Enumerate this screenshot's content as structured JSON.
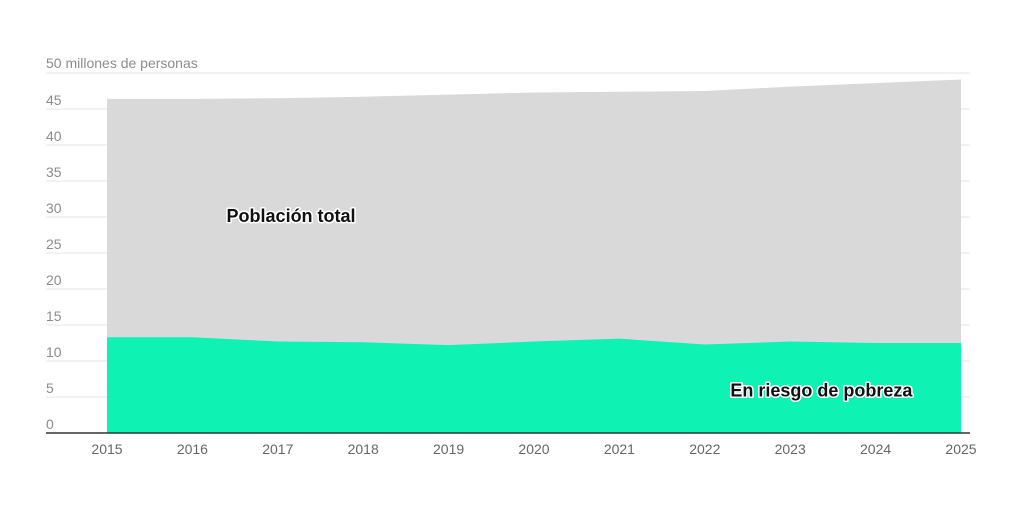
{
  "chart_data": {
    "type": "area",
    "x": [
      2015,
      2016,
      2017,
      2018,
      2019,
      2020,
      2021,
      2022,
      2023,
      2024,
      2025
    ],
    "series": [
      {
        "name": "Población total",
        "values": [
          46.4,
          46.4,
          46.5,
          46.7,
          47.0,
          47.3,
          47.4,
          47.5,
          48.1,
          48.6,
          49.1
        ],
        "color": "#d9d9d9"
      },
      {
        "name": "En riesgo de pobreza",
        "values": [
          13.3,
          13.3,
          12.7,
          12.6,
          12.2,
          12.7,
          13.1,
          12.3,
          12.7,
          12.5,
          12.5
        ],
        "color": "#0ef2b4"
      }
    ],
    "ylabel": "50 millones de personas",
    "yticks": [
      0,
      5,
      10,
      15,
      20,
      25,
      30,
      35,
      40,
      45
    ],
    "ylim": [
      0,
      50
    ],
    "xlim": [
      2015,
      2025
    ],
    "grid": true
  }
}
